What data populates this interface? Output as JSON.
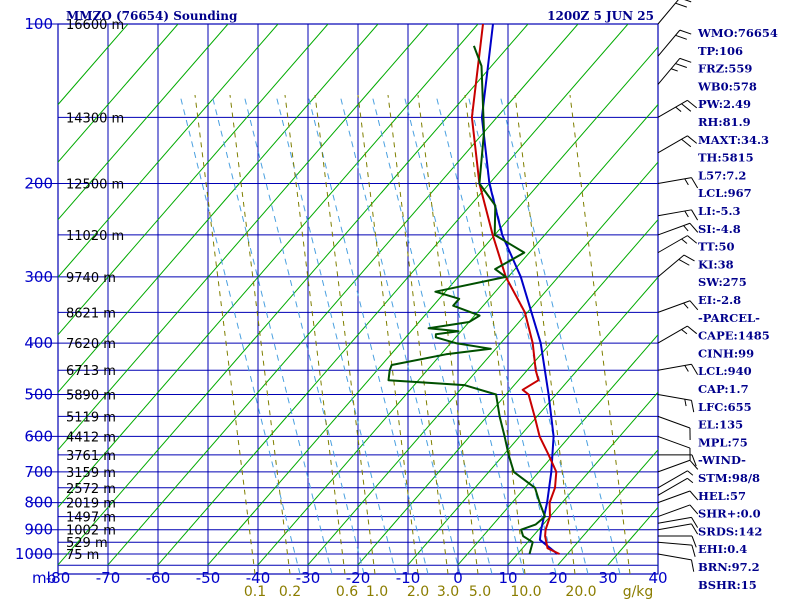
{
  "header": {
    "station": "MMZO (76654) Sounding",
    "time": "1200Z  5 JUN 25"
  },
  "colors": {
    "grid": "#0000b4",
    "dry_adiabat": "#00aa00",
    "mixing_ratio": "#7f7f00",
    "moist_adiabat": "#4aa0e0",
    "temperature": "#c80000",
    "dewpoint": "#005000",
    "parcel": "#0000c8"
  },
  "chart_data": {
    "type": "line",
    "title": "MMZO (76654) Sounding",
    "subtitle": "1200Z  5 JUN 25",
    "y_axis": {
      "label": "mb",
      "scale": "log",
      "ticks": [
        100,
        200,
        300,
        400,
        500,
        600,
        700,
        800,
        900,
        1000
      ],
      "range": [
        100,
        1050
      ]
    },
    "x_axis": {
      "label": "",
      "range": [
        -80,
        40
      ],
      "ticks": [
        -80,
        -70,
        -60,
        -50,
        -40,
        -30,
        -20,
        -10,
        0,
        10,
        20,
        30,
        40
      ]
    },
    "temperature_tick_labels": [
      "-80",
      "-70",
      "-60",
      "-50",
      "-40",
      "-30",
      "-20",
      "-10",
      "0",
      "10",
      "20",
      "30",
      "40"
    ],
    "mixing_ratio_labels": [
      "0.1",
      "0.2",
      "0.6",
      "1.0",
      "2.0",
      "3.0",
      "5.0",
      "10.0",
      "20.0",
      "g/kg"
    ],
    "height_labels": [
      {
        "p": 100,
        "text": "16600 m"
      },
      {
        "p": 150,
        "text": "14300 m"
      },
      {
        "p": 200,
        "text": "12500 m"
      },
      {
        "p": 250,
        "text": "11020 m"
      },
      {
        "p": 300,
        "text": "9740 m"
      },
      {
        "p": 350,
        "text": "8621 m"
      },
      {
        "p": 400,
        "text": "7620 m"
      },
      {
        "p": 450,
        "text": "6713 m"
      },
      {
        "p": 500,
        "text": "5890 m"
      },
      {
        "p": 550,
        "text": "5119 m"
      },
      {
        "p": 600,
        "text": "4412 m"
      },
      {
        "p": 650,
        "text": "3761 m"
      },
      {
        "p": 700,
        "text": "3159 m"
      },
      {
        "p": 750,
        "text": "2572 m"
      },
      {
        "p": 800,
        "text": "2019 m"
      },
      {
        "p": 850,
        "text": "1497 m"
      },
      {
        "p": 900,
        "text": "1002 m"
      },
      {
        "p": 950,
        "text": "529 m"
      },
      {
        "p": 1000,
        "text": "75 m"
      }
    ],
    "series": [
      {
        "name": "Temperature",
        "points": [
          [
            1000,
            28.4
          ],
          [
            975,
            25.0
          ],
          [
            925,
            22.4
          ],
          [
            900,
            21.4
          ],
          [
            850,
            20.0
          ],
          [
            800,
            17.5
          ],
          [
            750,
            16.0
          ],
          [
            700,
            13.5
          ],
          [
            650,
            9.0
          ],
          [
            600,
            4.0
          ],
          [
            550,
            -0.5
          ],
          [
            500,
            -5.5
          ],
          [
            490,
            -7.5
          ],
          [
            470,
            -6.0
          ],
          [
            450,
            -8.3
          ],
          [
            400,
            -13.6
          ],
          [
            350,
            -20.5
          ],
          [
            300,
            -30.5
          ],
          [
            250,
            -40.4
          ],
          [
            200,
            -52.0
          ],
          [
            150,
            -65.0
          ],
          [
            100,
            -79.0
          ]
        ]
      },
      {
        "name": "Dewpoint",
        "points": [
          [
            1000,
            22.4
          ],
          [
            950,
            21.0
          ],
          [
            925,
            18.0
          ],
          [
            900,
            16.5
          ],
          [
            880,
            18.5
          ],
          [
            850,
            19.0
          ],
          [
            800,
            15.5
          ],
          [
            750,
            12.0
          ],
          [
            700,
            5.0
          ],
          [
            650,
            1.0
          ],
          [
            600,
            -3.0
          ],
          [
            550,
            -7.5
          ],
          [
            500,
            -12.0
          ],
          [
            480,
            -20.0
          ],
          [
            470,
            -36.0
          ],
          [
            450,
            -37.5
          ],
          [
            440,
            -38.0
          ],
          [
            420,
            -29.0
          ],
          [
            410,
            -21.0
          ],
          [
            400,
            -29.0
          ],
          [
            390,
            -34.0
          ],
          [
            385,
            -34.5
          ],
          [
            380,
            -30.5
          ],
          [
            375,
            -37.0
          ],
          [
            365,
            -30.0
          ],
          [
            355,
            -29.0
          ],
          [
            340,
            -36.0
          ],
          [
            330,
            -36.0
          ],
          [
            320,
            -42.0
          ],
          [
            300,
            -30.5
          ],
          [
            290,
            -34.0
          ],
          [
            270,
            -31.0
          ],
          [
            250,
            -40.0
          ],
          [
            220,
            -45.0
          ],
          [
            200,
            -52.0
          ],
          [
            160,
            -60.0
          ],
          [
            120,
            -72.0
          ],
          [
            110,
            -77.0
          ]
        ]
      },
      {
        "name": "Parcel",
        "points": [
          [
            1000,
            28.0
          ],
          [
            940,
            22.0
          ],
          [
            900,
            20.5
          ],
          [
            850,
            18.8
          ],
          [
            800,
            17.0
          ],
          [
            700,
            12.5
          ],
          [
            600,
            6.8
          ],
          [
            500,
            -1.5
          ],
          [
            400,
            -12.0
          ],
          [
            300,
            -27.5
          ],
          [
            250,
            -38.5
          ],
          [
            200,
            -50.0
          ],
          [
            150,
            -63.0
          ],
          [
            100,
            -77.0
          ]
        ]
      }
    ],
    "wind_barbs": [
      {
        "p": 1000,
        "dir": 100,
        "spd": 8
      },
      {
        "p": 950,
        "dir": 95,
        "spd": 10
      },
      {
        "p": 925,
        "dir": 90,
        "spd": 10
      },
      {
        "p": 900,
        "dir": 80,
        "spd": 10
      },
      {
        "p": 875,
        "dir": 80,
        "spd": 10
      },
      {
        "p": 850,
        "dir": 70,
        "spd": 10
      },
      {
        "p": 800,
        "dir": 70,
        "spd": 10
      },
      {
        "p": 775,
        "dir": 60,
        "spd": 5
      },
      {
        "p": 750,
        "dir": 60,
        "spd": 5
      },
      {
        "p": 700,
        "dir": 70,
        "spd": 10
      },
      {
        "p": 650,
        "dir": 90,
        "spd": 10
      },
      {
        "p": 600,
        "dir": 110,
        "spd": 10
      },
      {
        "p": 550,
        "dir": 110,
        "spd": 10
      },
      {
        "p": 500,
        "dir": 100,
        "spd": 15
      },
      {
        "p": 450,
        "dir": 80,
        "spd": 15
      },
      {
        "p": 400,
        "dir": 60,
        "spd": 15
      },
      {
        "p": 350,
        "dir": 70,
        "spd": 15
      },
      {
        "p": 300,
        "dir": 50,
        "spd": 20
      },
      {
        "p": 270,
        "dir": 60,
        "spd": 15
      },
      {
        "p": 250,
        "dir": 70,
        "spd": 15
      },
      {
        "p": 230,
        "dir": 80,
        "spd": 15
      },
      {
        "p": 200,
        "dir": 80,
        "spd": 15
      },
      {
        "p": 175,
        "dir": 60,
        "spd": 20
      },
      {
        "p": 150,
        "dir": 60,
        "spd": 25
      },
      {
        "p": 130,
        "dir": 40,
        "spd": 25
      },
      {
        "p": 115,
        "dir": 40,
        "spd": 20
      },
      {
        "p": 100,
        "dir": 40,
        "spd": 20
      }
    ]
  },
  "indices": [
    "WMO:76654",
    "TP:106",
    "FRZ:559",
    "WB0:578",
    "PW:2.49",
    "RH:81.9",
    "MAXT:34.3",
    "TH:5815",
    "L57:7.2",
    "LCL:967",
    "LI:-5.3",
    "SI:-4.8",
    "TT:50",
    "KI:38",
    "SW:275",
    "EI:-2.8",
    "-PARCEL-",
    "CAPE:1485",
    "CINH:99",
    "LCL:940",
    "CAP:1.7",
    "LFC:655",
    "EL:135",
    "MPL:75",
    "-WIND-",
    "STM:98/8",
    "HEL:57",
    "SHR+:0.0",
    "SRDS:142",
    "EHI:0.4",
    "BRN:97.2",
    "BSHR:15"
  ]
}
